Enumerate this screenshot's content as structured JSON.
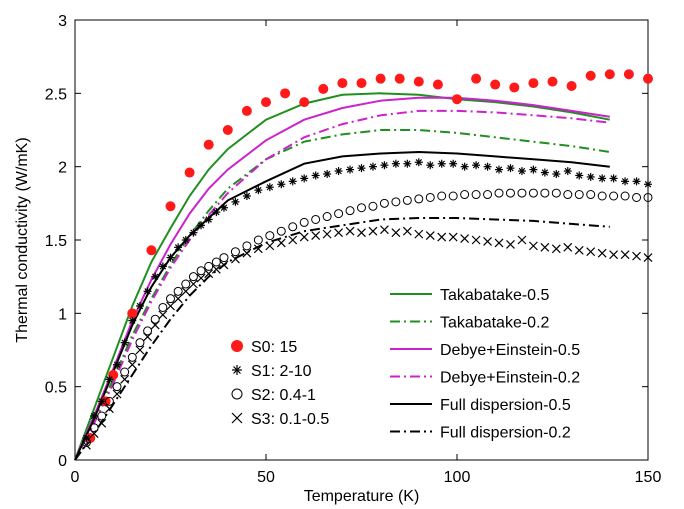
{
  "chart_data": {
    "type": "line",
    "xlabel": "Temperature (K)",
    "ylabel": "Thermal conductivity (W/mK)",
    "xlim": [
      0,
      150
    ],
    "ylim": [
      0,
      3
    ],
    "xticks": [
      "0",
      "50",
      "100",
      "150"
    ],
    "yticks": [
      "0",
      "0.5",
      "1",
      "1.5",
      "2",
      "2.5",
      "3"
    ],
    "grid": false,
    "scatter_series": [
      {
        "name": "S0: 15",
        "marker": "filled-circle",
        "color": "#ff1a1a",
        "x": [
          4,
          8,
          10,
          15,
          20,
          25,
          30,
          35,
          40,
          45,
          50,
          55,
          60,
          65,
          70,
          75,
          80,
          85,
          90,
          95,
          100,
          105,
          110,
          115,
          120,
          125,
          130,
          135,
          140,
          145,
          150
        ],
        "y": [
          0.15,
          0.4,
          0.58,
          1.0,
          1.43,
          1.73,
          1.96,
          2.15,
          2.25,
          2.38,
          2.44,
          2.5,
          2.44,
          2.53,
          2.57,
          2.57,
          2.6,
          2.6,
          2.58,
          2.56,
          2.46,
          2.6,
          2.56,
          2.54,
          2.57,
          2.58,
          2.55,
          2.62,
          2.63,
          2.63,
          2.6
        ]
      },
      {
        "name": "S1: 2-10",
        "marker": "asterisk",
        "color": "#000000",
        "x": [
          3,
          5,
          7,
          9,
          11,
          13,
          15,
          17,
          19,
          21,
          23,
          25,
          27,
          29,
          31,
          33,
          35,
          37,
          39,
          42,
          45,
          48,
          51,
          54,
          57,
          60,
          63,
          66,
          69,
          72,
          75,
          78,
          81,
          84,
          87,
          90,
          93,
          96,
          99,
          102,
          105,
          108,
          111,
          114,
          117,
          120,
          123,
          126,
          129,
          132,
          135,
          138,
          141,
          144,
          147,
          150
        ],
        "y": [
          0.15,
          0.3,
          0.4,
          0.55,
          0.65,
          0.8,
          0.95,
          1.05,
          1.15,
          1.25,
          1.32,
          1.38,
          1.45,
          1.5,
          1.55,
          1.6,
          1.64,
          1.69,
          1.72,
          1.76,
          1.8,
          1.84,
          1.86,
          1.88,
          1.9,
          1.92,
          1.94,
          1.95,
          1.97,
          1.98,
          1.99,
          2.0,
          2.01,
          2.02,
          2.02,
          2.03,
          2.01,
          2.02,
          2.02,
          2.0,
          2.01,
          2.0,
          1.98,
          1.99,
          1.97,
          1.98,
          1.96,
          1.95,
          1.97,
          1.94,
          1.93,
          1.92,
          1.92,
          1.9,
          1.9,
          1.88
        ]
      },
      {
        "name": "S2: 0.4-1",
        "marker": "open-circle",
        "color": "#000000",
        "x": [
          3,
          5,
          7,
          9,
          11,
          13,
          15,
          17,
          19,
          21,
          23,
          25,
          27,
          29,
          31,
          33,
          35,
          37,
          39,
          42,
          45,
          48,
          51,
          54,
          57,
          60,
          63,
          66,
          69,
          72,
          75,
          78,
          81,
          84,
          87,
          90,
          93,
          96,
          99,
          102,
          105,
          108,
          111,
          114,
          117,
          120,
          123,
          126,
          129,
          132,
          135,
          138,
          141,
          144,
          147,
          150
        ],
        "y": [
          0.12,
          0.22,
          0.3,
          0.4,
          0.5,
          0.6,
          0.7,
          0.8,
          0.88,
          0.96,
          1.04,
          1.1,
          1.15,
          1.2,
          1.25,
          1.29,
          1.32,
          1.35,
          1.38,
          1.42,
          1.46,
          1.5,
          1.53,
          1.56,
          1.59,
          1.62,
          1.64,
          1.66,
          1.68,
          1.7,
          1.72,
          1.73,
          1.75,
          1.76,
          1.77,
          1.78,
          1.79,
          1.8,
          1.8,
          1.81,
          1.81,
          1.81,
          1.82,
          1.82,
          1.82,
          1.82,
          1.82,
          1.82,
          1.81,
          1.81,
          1.81,
          1.8,
          1.8,
          1.8,
          1.79,
          1.79
        ]
      },
      {
        "name": "S3: 0.1-0.5",
        "marker": "x",
        "color": "#000000",
        "x": [
          3,
          5,
          7,
          9,
          11,
          13,
          15,
          17,
          19,
          21,
          23,
          25,
          27,
          29,
          31,
          33,
          35,
          37,
          39,
          42,
          45,
          48,
          51,
          54,
          57,
          60,
          63,
          66,
          69,
          72,
          75,
          78,
          81,
          84,
          87,
          90,
          93,
          96,
          99,
          102,
          105,
          108,
          111,
          114,
          117,
          120,
          123,
          126,
          129,
          132,
          135,
          138,
          141,
          144,
          147,
          150
        ],
        "y": [
          0.1,
          0.18,
          0.25,
          0.35,
          0.45,
          0.55,
          0.65,
          0.75,
          0.84,
          0.92,
          0.99,
          1.05,
          1.1,
          1.15,
          1.2,
          1.24,
          1.27,
          1.3,
          1.33,
          1.37,
          1.41,
          1.44,
          1.46,
          1.48,
          1.5,
          1.52,
          1.53,
          1.54,
          1.55,
          1.56,
          1.55,
          1.56,
          1.57,
          1.55,
          1.56,
          1.54,
          1.53,
          1.52,
          1.52,
          1.51,
          1.5,
          1.49,
          1.48,
          1.47,
          1.5,
          1.46,
          1.45,
          1.44,
          1.45,
          1.43,
          1.42,
          1.41,
          1.4,
          1.4,
          1.39,
          1.38
        ]
      }
    ],
    "line_series": [
      {
        "name": "Takabatake-0.5",
        "color": "#1f8f1f",
        "dash": "solid",
        "x": [
          0,
          5,
          10,
          15,
          20,
          25,
          30,
          35,
          40,
          50,
          60,
          70,
          80,
          90,
          100,
          110,
          120,
          130,
          140
        ],
        "y": [
          0,
          0.35,
          0.7,
          1.05,
          1.35,
          1.58,
          1.8,
          1.98,
          2.12,
          2.32,
          2.43,
          2.49,
          2.5,
          2.49,
          2.46,
          2.44,
          2.41,
          2.37,
          2.32
        ]
      },
      {
        "name": "Takabatake-0.2",
        "color": "#1f8f1f",
        "dash": "dashdot",
        "x": [
          0,
          5,
          10,
          15,
          20,
          25,
          30,
          35,
          40,
          50,
          60,
          70,
          80,
          90,
          100,
          110,
          120,
          130,
          140
        ],
        "y": [
          0,
          0.27,
          0.55,
          0.85,
          1.1,
          1.33,
          1.53,
          1.7,
          1.85,
          2.05,
          2.17,
          2.22,
          2.25,
          2.25,
          2.23,
          2.2,
          2.17,
          2.14,
          2.1
        ]
      },
      {
        "name": "Debye+Einstein-0.5",
        "color": "#cc22cc",
        "dash": "solid",
        "x": [
          0,
          5,
          10,
          15,
          20,
          25,
          30,
          35,
          40,
          50,
          60,
          70,
          80,
          90,
          100,
          110,
          120,
          130,
          140
        ],
        "y": [
          0,
          0.3,
          0.62,
          0.95,
          1.23,
          1.47,
          1.68,
          1.85,
          1.98,
          2.18,
          2.32,
          2.4,
          2.45,
          2.47,
          2.47,
          2.45,
          2.42,
          2.38,
          2.34
        ]
      },
      {
        "name": "Debye+Einstein-0.2",
        "color": "#cc22cc",
        "dash": "dashdot",
        "x": [
          0,
          5,
          10,
          15,
          20,
          25,
          30,
          35,
          40,
          50,
          60,
          70,
          80,
          90,
          100,
          110,
          120,
          130,
          140
        ],
        "y": [
          0,
          0.25,
          0.52,
          0.82,
          1.08,
          1.31,
          1.5,
          1.67,
          1.82,
          2.05,
          2.2,
          2.29,
          2.35,
          2.38,
          2.38,
          2.37,
          2.35,
          2.33,
          2.3
        ]
      },
      {
        "name": "Full dispersion-0.5",
        "color": "#000000",
        "dash": "solid",
        "x": [
          0,
          5,
          10,
          15,
          20,
          25,
          30,
          35,
          40,
          50,
          60,
          70,
          80,
          90,
          100,
          110,
          120,
          130,
          140
        ],
        "y": [
          0,
          0.28,
          0.6,
          0.92,
          1.18,
          1.38,
          1.53,
          1.65,
          1.77,
          1.9,
          2.02,
          2.07,
          2.09,
          2.1,
          2.09,
          2.07,
          2.05,
          2.03,
          2.0
        ]
      },
      {
        "name": "Full dispersion-0.2",
        "color": "#000000",
        "dash": "dashdot",
        "x": [
          0,
          5,
          10,
          15,
          20,
          25,
          30,
          35,
          40,
          50,
          60,
          70,
          80,
          90,
          100,
          110,
          120,
          130,
          140
        ],
        "y": [
          0,
          0.18,
          0.38,
          0.58,
          0.78,
          0.96,
          1.12,
          1.25,
          1.35,
          1.48,
          1.56,
          1.6,
          1.64,
          1.65,
          1.65,
          1.64,
          1.63,
          1.61,
          1.59
        ]
      }
    ],
    "legend_markers": [
      "S0: 15",
      "S1: 2-10",
      "S2: 0.4-1",
      "S3: 0.1-0.5"
    ],
    "legend_lines": [
      "Takabatake-0.5",
      "Takabatake-0.2",
      "Debye+Einstein-0.5",
      "Debye+Einstein-0.2",
      "Full dispersion-0.5",
      "Full dispersion-0.2"
    ],
    "legend_placement": "lower-right"
  }
}
